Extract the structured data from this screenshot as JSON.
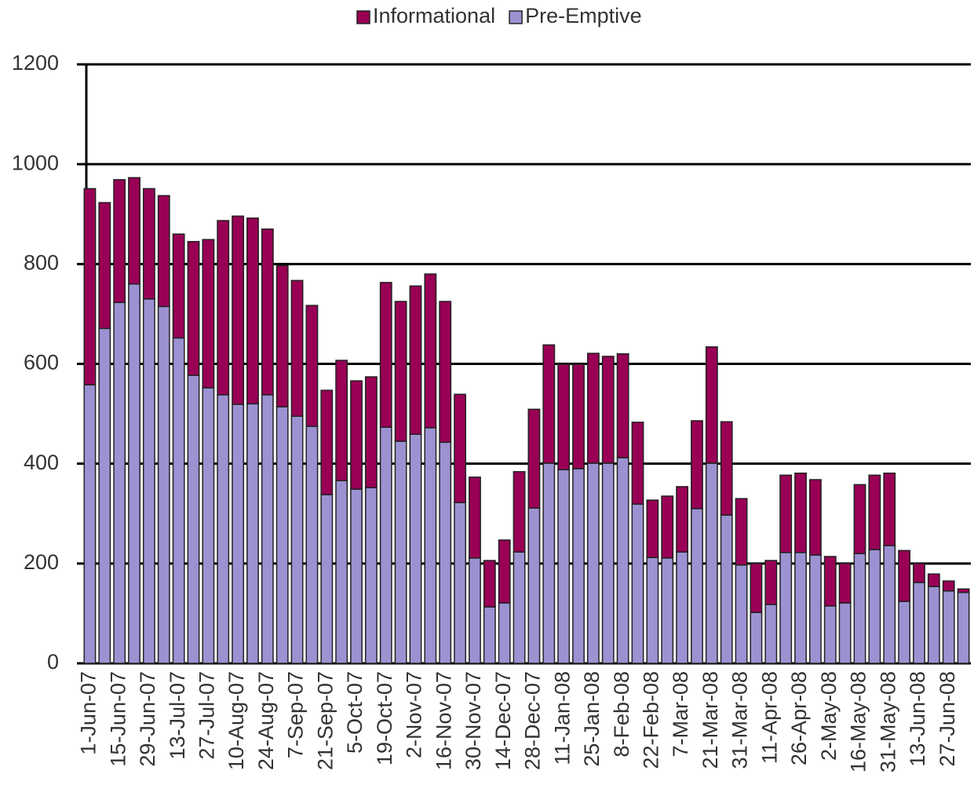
{
  "chart_data": {
    "type": "stacked_bar",
    "categories": [
      "1-Jun-07",
      null,
      "15-Jun-07",
      null,
      "29-Jun-07",
      null,
      "13-Jul-07",
      null,
      "27-Jul-07",
      null,
      "10-Aug-07",
      null,
      "24-Aug-07",
      null,
      "7-Sep-07",
      null,
      "21-Sep-07",
      null,
      "5-Oct-07",
      null,
      "19-Oct-07",
      null,
      "2-Nov-07",
      null,
      "16-Nov-07",
      null,
      "30-Nov-07",
      null,
      "14-Dec-07",
      null,
      "28-Dec-07",
      null,
      "11-Jan-08",
      null,
      "25-Jan-08",
      null,
      "8-Feb-08",
      null,
      "22-Feb-08",
      null,
      "7-Mar-08",
      null,
      "21-Mar-08",
      null,
      "31-Mar-08",
      null,
      "11-Apr-08",
      null,
      "26-Apr-08",
      null,
      "2-May-08",
      null,
      "16-May-08",
      null,
      "31-May-08",
      null,
      "13-Jun-08",
      null,
      "27-Jun-08",
      null
    ],
    "series": [
      {
        "name": "Pre-Emptive",
        "color": "#9c92d2",
        "values": [
          558,
          671,
          723,
          760,
          730,
          715,
          652,
          577,
          552,
          538,
          519,
          520,
          538,
          514,
          495,
          475,
          338,
          366,
          349,
          352,
          473,
          445,
          459,
          472,
          443,
          322,
          211,
          113,
          121,
          223,
          311,
          401,
          388,
          390,
          401,
          401,
          412,
          319,
          212,
          211,
          223,
          310,
          401,
          297,
          197,
          102,
          118,
          222,
          222,
          217,
          115,
          121,
          220,
          228,
          236,
          124,
          162,
          154,
          145,
          142
        ]
      },
      {
        "name": "Informational",
        "color": "#990055",
        "values": [
          393,
          252,
          246,
          213,
          221,
          222,
          208,
          268,
          297,
          349,
          377,
          372,
          332,
          283,
          272,
          242,
          209,
          241,
          217,
          222,
          290,
          280,
          297,
          308,
          282,
          217,
          162,
          93,
          126,
          161,
          198,
          237,
          211,
          209,
          220,
          214,
          208,
          164,
          115,
          124,
          131,
          176,
          233,
          187,
          133,
          98,
          88,
          155,
          159,
          151,
          99,
          79,
          138,
          149,
          145,
          102,
          38,
          25,
          20,
          7
        ]
      }
    ],
    "legend": "top",
    "ylim": [
      0,
      1200
    ],
    "yticks": [
      0,
      200,
      400,
      600,
      800,
      1000,
      1200
    ],
    "grid": true
  }
}
